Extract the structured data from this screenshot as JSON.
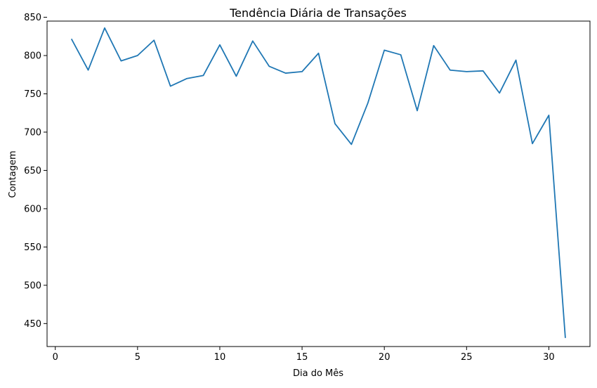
{
  "chart_data": {
    "type": "line",
    "title": "Tendência Diária de Transações",
    "xlabel": "Dia do Mês",
    "ylabel": "Contagem",
    "xlim": [
      -0.5,
      32.5
    ],
    "ylim": [
      420,
      845
    ],
    "xticks": [
      0,
      5,
      10,
      15,
      20,
      25,
      30
    ],
    "yticks": [
      450,
      500,
      550,
      600,
      650,
      700,
      750,
      800,
      850
    ],
    "grid": false,
    "legend": "none",
    "series": [
      {
        "color": "#1f77b4",
        "x": [
          1,
          2,
          3,
          4,
          5,
          6,
          7,
          8,
          9,
          10,
          11,
          12,
          13,
          14,
          15,
          16,
          17,
          18,
          19,
          20,
          21,
          22,
          23,
          24,
          25,
          26,
          27,
          28,
          29,
          30,
          31
        ],
        "values": [
          821,
          781,
          836,
          793,
          800,
          820,
          760,
          770,
          774,
          814,
          773,
          819,
          786,
          777,
          779,
          803,
          711,
          684,
          738,
          807,
          801,
          728,
          813,
          781,
          779,
          780,
          751,
          794,
          685,
          722,
          432
        ]
      }
    ]
  }
}
